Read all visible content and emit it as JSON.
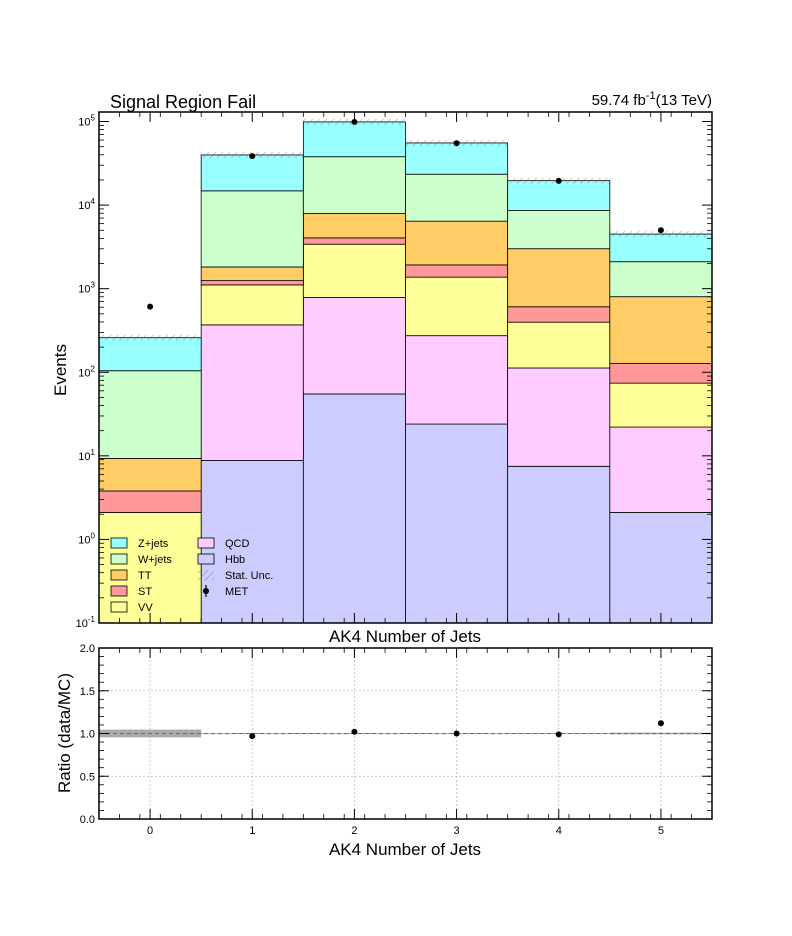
{
  "chart_data": [
    {
      "type": "bar",
      "stacked": true,
      "histogram": true,
      "title": "Signal Region Fail",
      "lumi_label": "59.74 fb",
      "lumi_exponent": "-1",
      "energy_label": "(13 TeV)",
      "xlabel": "AK4 Number of Jets",
      "ylabel": "Events",
      "yscale": "log",
      "ylim": [
        0.1,
        130000
      ],
      "xlim": [
        -0.5,
        5.5
      ],
      "categories": [
        "0",
        "1",
        "2",
        "3",
        "4",
        "5"
      ],
      "y_tick_labels": [
        {
          "base": "10",
          "exp": "-1"
        },
        {
          "base": "10",
          "exp": "0"
        },
        {
          "base": "10",
          "exp": "1"
        },
        {
          "base": "10",
          "exp": "2"
        },
        {
          "base": "10",
          "exp": "3"
        },
        {
          "base": "10",
          "exp": "4"
        },
        {
          "base": "10",
          "exp": "5"
        }
      ],
      "series": [
        {
          "name": "Hbb",
          "color": "#ccccff",
          "values": [
            0,
            8.8,
            55,
            24,
            7.5,
            2.1
          ]
        },
        {
          "name": "VV",
          "color": "#ffff99",
          "values": [
            2.1,
            0,
            0,
            0,
            0,
            0
          ]
        },
        {
          "name": "QCD",
          "color": "#ffccff",
          "values": [
            0,
            360,
            730,
            250,
            105,
            20
          ]
        },
        {
          "name": "VV",
          "color": "#ffff99",
          "values": [
            0,
            740,
            2620,
            1100,
            285,
            52
          ]
        },
        {
          "name": "ST",
          "color": "#ff9999",
          "values": [
            1.7,
            140,
            650,
            550,
            210,
            53
          ]
        },
        {
          "name": "TT",
          "color": "#ffcc66",
          "values": [
            5.5,
            570,
            3870,
            4500,
            2400,
            675
          ]
        },
        {
          "name": "W+jets",
          "color": "#ccffcc",
          "values": [
            95,
            13000,
            30000,
            17000,
            5600,
            1300
          ]
        },
        {
          "name": "Z+jets",
          "color": "#99ffff",
          "values": [
            155,
            25000,
            61000,
            32000,
            11000,
            2400
          ]
        }
      ],
      "data_points": {
        "name": "MET",
        "values": [
          610,
          38500,
          99000,
          55000,
          19500,
          5000
        ]
      },
      "legend": {
        "position": "bottom-left",
        "entries": [
          {
            "label": "Z+jets",
            "color": "#99ffff",
            "kind": "box"
          },
          {
            "label": "W+jets",
            "color": "#ccffcc",
            "kind": "box"
          },
          {
            "label": "TT",
            "color": "#ffcc66",
            "kind": "box"
          },
          {
            "label": "ST",
            "color": "#ff9999",
            "kind": "box"
          },
          {
            "label": "VV",
            "color": "#ffff99",
            "kind": "box"
          },
          {
            "label": "QCD",
            "color": "#ffccff",
            "kind": "box"
          },
          {
            "label": "Hbb",
            "color": "#ccccff",
            "kind": "box"
          },
          {
            "label": "Stat. Unc.",
            "color": "#888888",
            "kind": "hatch"
          },
          {
            "label": "MET",
            "color": "#000000",
            "kind": "marker"
          }
        ]
      }
    },
    {
      "type": "scatter",
      "xlabel": "AK4 Number of Jets",
      "ylabel": "Ratio (data/MC)",
      "ylim": [
        0.0,
        2.0
      ],
      "xlim": [
        -0.5,
        5.5
      ],
      "y_tick_labels": [
        "0.0",
        "0.5",
        "1.0",
        "1.5",
        "2.0"
      ],
      "x_tick_labels": [
        "0",
        "1",
        "2",
        "3",
        "4",
        "5"
      ],
      "grid": true,
      "reference_line": 1.0,
      "ratio_values": [
        null,
        0.97,
        1.02,
        1.0,
        0.99,
        1.12
      ],
      "uncertainty_band": {
        "color": "#aaaaaa",
        "half_widths": [
          0.045,
          0.004,
          0.004,
          0.004,
          0.006,
          0.01
        ]
      }
    }
  ]
}
